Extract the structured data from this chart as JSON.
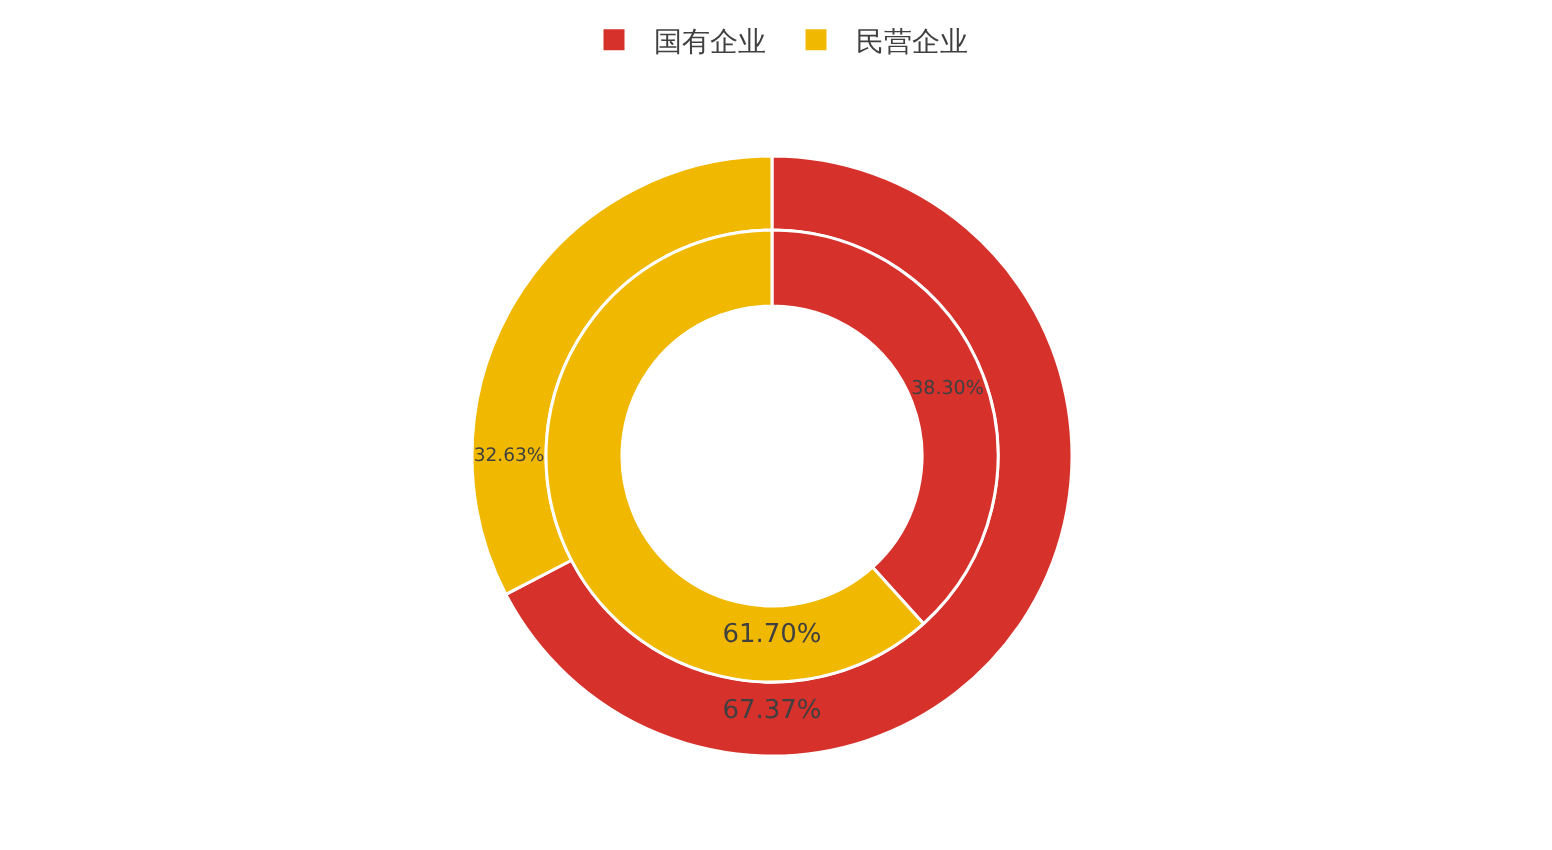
{
  "chart_data": {
    "type": "donut",
    "categories": [
      "国有企业",
      "民营企业"
    ],
    "colors": [
      "#d7312c",
      "#f1b800"
    ],
    "legend": "top",
    "series": [
      {
        "values": [
          67.37,
          32.63
        ],
        "value_labels": [
          "67.37%",
          "32.63%"
        ]
      },
      {
        "values": [
          38.3,
          61.7
        ],
        "value_labels": [
          "38.30%",
          "61.70%"
        ]
      }
    ]
  }
}
